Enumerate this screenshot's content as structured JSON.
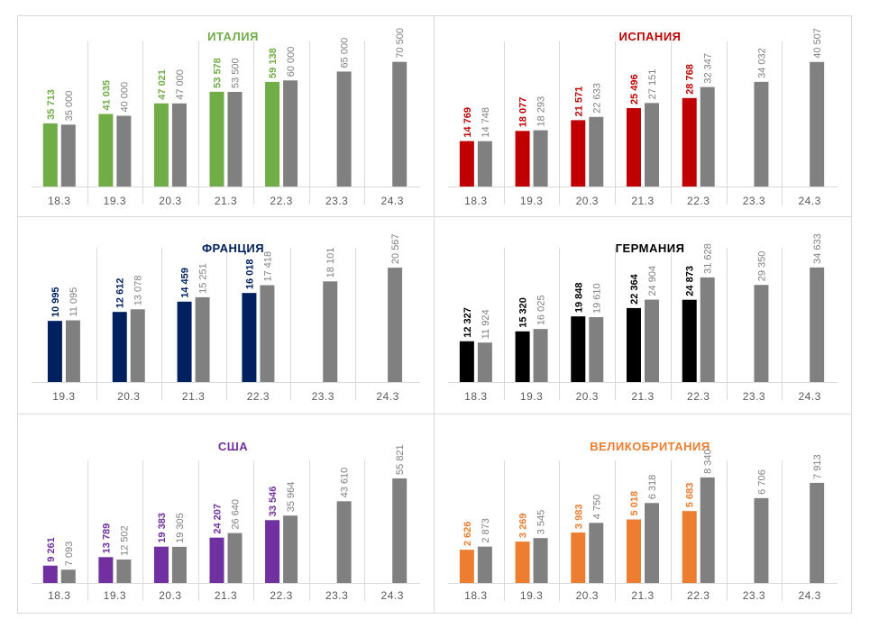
{
  "chart_data": [
    {
      "type": "bar",
      "title": "ИТАЛИЯ",
      "title_color": "#70ad47",
      "actual_color": "#70ad47",
      "forecast_color": "#808080",
      "categories": [
        "18.3",
        "19.3",
        "20.3",
        "21.3",
        "22.3",
        "23.3",
        "24.3"
      ],
      "series": [
        {
          "values": [
            35713,
            41035,
            47021,
            53578,
            59138,
            null,
            null
          ],
          "labels": [
            "35 713",
            "41 035",
            "47 021",
            "53 578",
            "59 138",
            "",
            ""
          ]
        },
        {
          "values": [
            35000,
            40000,
            47000,
            53500,
            60000,
            65000,
            70500
          ],
          "labels": [
            "35 000",
            "40 000",
            "47 000",
            "53 500",
            "60 000",
            "65 000",
            "70 500"
          ]
        }
      ],
      "ylim": [
        0,
        80000
      ]
    },
    {
      "type": "bar",
      "title": "ИСПАНИЯ",
      "title_color": "#c00000",
      "actual_color": "#c00000",
      "forecast_color": "#808080",
      "categories": [
        "18.3",
        "19.3",
        "20.3",
        "21.3",
        "22.3",
        "23.3",
        "24.3"
      ],
      "series": [
        {
          "values": [
            14769,
            18077,
            21571,
            25496,
            28768,
            null,
            null
          ],
          "labels": [
            "14 769",
            "18 077",
            "21 571",
            "25 496",
            "28 768",
            "",
            ""
          ]
        },
        {
          "values": [
            14748,
            18293,
            22633,
            27151,
            32347,
            34032,
            40507
          ],
          "labels": [
            "14 748",
            "18 293",
            "22 633",
            "27 151",
            "32 347",
            "34 032",
            "40 507"
          ]
        }
      ],
      "ylim": [
        0,
        46000
      ]
    },
    {
      "type": "bar",
      "title": "ФРАНЦИЯ",
      "title_color": "#002060",
      "actual_color": "#002060",
      "forecast_color": "#808080",
      "categories": [
        "19.3",
        "20.3",
        "21.3",
        "22.3",
        "23.3",
        "24.3"
      ],
      "series": [
        {
          "values": [
            10995,
            12612,
            14459,
            16018,
            null,
            null
          ],
          "labels": [
            "10 995",
            "12 612",
            "14 459",
            "16 018",
            "",
            ""
          ]
        },
        {
          "values": [
            11095,
            13078,
            15251,
            17418,
            18101,
            20567
          ],
          "labels": [
            "11 095",
            "13 078",
            "15 251",
            "17 418",
            "18 101",
            "20 567"
          ]
        }
      ],
      "ylim": [
        0,
        23500
      ]
    },
    {
      "type": "bar",
      "title": "ГЕРМАНИЯ",
      "title_color": "#000000",
      "actual_color": "#000000",
      "forecast_color": "#808080",
      "categories": [
        "18.3",
        "19.3",
        "20.3",
        "21.3",
        "22.3",
        "23.3",
        "24.3"
      ],
      "series": [
        {
          "values": [
            12327,
            15320,
            19848,
            22364,
            24873,
            null,
            null
          ],
          "labels": [
            "12 327",
            "15 320",
            "19 848",
            "22 364",
            "24 873",
            "",
            ""
          ]
        },
        {
          "values": [
            11924,
            16025,
            19610,
            24904,
            31628,
            29350,
            34633
          ],
          "labels": [
            "11 924",
            "16 025",
            "19 610",
            "24 904",
            "31 628",
            "29 350",
            "34 633"
          ]
        }
      ],
      "ylim": [
        0,
        39500
      ]
    },
    {
      "type": "bar",
      "title": "США",
      "title_color": "#7030a0",
      "actual_color": "#7030a0",
      "forecast_color": "#808080",
      "categories": [
        "18.3",
        "19.3",
        "20.3",
        "21.3",
        "22.3",
        "23.3",
        "24.3"
      ],
      "series": [
        {
          "values": [
            9261,
            13789,
            19383,
            24207,
            33546,
            null,
            null
          ],
          "labels": [
            "9 261",
            "13 789",
            "19 383",
            "24 207",
            "33 546",
            "",
            ""
          ]
        },
        {
          "values": [
            7093,
            12502,
            19305,
            26640,
            35964,
            43610,
            55821
          ],
          "labels": [
            "7 093",
            "12 502",
            "19 305",
            "26 640",
            "35 964",
            "43 610",
            "55 821"
          ]
        }
      ],
      "ylim": [
        0,
        63500
      ]
    },
    {
      "type": "bar",
      "title": "ВЕЛИКОБРИТАНИЯ",
      "title_color": "#ed7d31",
      "actual_color": "#ed7d31",
      "forecast_color": "#808080",
      "categories": [
        "18.3",
        "19.3",
        "20.3",
        "21.3",
        "22.3",
        "23.3",
        "24.3"
      ],
      "series": [
        {
          "values": [
            2626,
            3269,
            3983,
            5018,
            5683,
            null,
            null
          ],
          "labels": [
            "2 626",
            "3 269",
            "3 983",
            "5 018",
            "5 683",
            "",
            ""
          ]
        },
        {
          "values": [
            2873,
            3545,
            4750,
            6318,
            8340,
            6706,
            7913
          ],
          "labels": [
            "2 873",
            "3 545",
            "4 750",
            "6 318",
            "8 340",
            "6 706",
            "7 913"
          ]
        }
      ],
      "ylim": [
        0,
        9400
      ]
    }
  ]
}
